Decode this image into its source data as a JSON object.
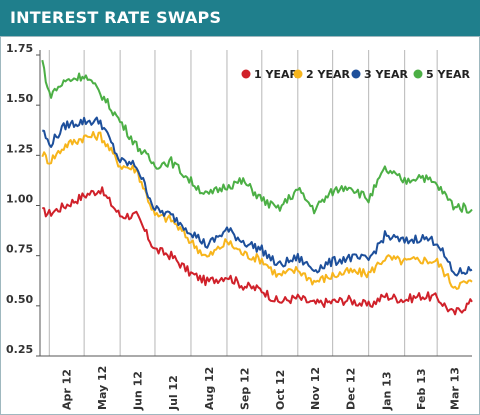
{
  "header": {
    "title": "INTEREST RATE SWAPS"
  },
  "chart_data": {
    "type": "line",
    "title": "INTEREST RATE SWAPS",
    "xlabel": "",
    "ylabel": "",
    "ylim": [
      0.25,
      1.75
    ],
    "y_ticks": [
      0.25,
      0.5,
      0.75,
      1.0,
      1.25,
      1.5,
      1.75
    ],
    "y_tick_labels": [
      "0.25",
      "0.50",
      "0.75",
      "1.00",
      "1.25",
      "1.50",
      "1.75"
    ],
    "x_ticks": [
      "Apr 12",
      "May 12",
      "Jun 12",
      "Jul 12",
      "Aug 12",
      "Sep 12",
      "Oct 12",
      "Nov 12",
      "Dec 12",
      "Jan 13",
      "Feb 13",
      "Mar 13"
    ],
    "x": [
      "2012-03-26",
      "2012-04-01",
      "2012-04-15",
      "2012-05-01",
      "2012-05-15",
      "2012-06-01",
      "2012-06-15",
      "2012-07-01",
      "2012-07-15",
      "2012-08-01",
      "2012-08-15",
      "2012-09-01",
      "2012-09-15",
      "2012-10-01",
      "2012-10-15",
      "2012-11-01",
      "2012-11-15",
      "2012-12-01",
      "2012-12-15",
      "2013-01-01",
      "2013-01-15",
      "2013-02-01",
      "2013-02-15",
      "2013-03-01",
      "2013-03-15",
      "2013-03-31"
    ],
    "grid": "x-axis month lines",
    "legend": "top-right",
    "series": [
      {
        "name": "1 YEAR",
        "color": "#d0212a",
        "values": [
          0.97,
          0.96,
          1.0,
          1.05,
          1.08,
          0.95,
          0.95,
          0.78,
          0.75,
          0.66,
          0.62,
          0.65,
          0.6,
          0.58,
          0.52,
          0.54,
          0.51,
          0.52,
          0.53,
          0.5,
          0.55,
          0.53,
          0.55,
          0.54,
          0.46,
          0.52
        ]
      },
      {
        "name": "2 YEAR",
        "color": "#f7b51c",
        "values": [
          1.26,
          1.22,
          1.3,
          1.34,
          1.35,
          1.2,
          1.18,
          0.95,
          0.93,
          0.82,
          0.74,
          0.82,
          0.76,
          0.73,
          0.65,
          0.68,
          0.62,
          0.65,
          0.67,
          0.66,
          0.74,
          0.72,
          0.73,
          0.72,
          0.6,
          0.62
        ]
      },
      {
        "name": "3 YEAR",
        "color": "#1d4f9b",
        "values": [
          1.38,
          1.3,
          1.4,
          1.42,
          1.42,
          1.22,
          1.2,
          0.98,
          0.95,
          0.87,
          0.8,
          0.88,
          0.82,
          0.78,
          0.7,
          0.74,
          0.68,
          0.72,
          0.74,
          0.73,
          0.85,
          0.82,
          0.84,
          0.82,
          0.66,
          0.68
        ]
      },
      {
        "name": "5 YEAR",
        "color": "#4caf45",
        "values": [
          1.72,
          1.55,
          1.62,
          1.65,
          1.56,
          1.42,
          1.3,
          1.2,
          1.22,
          1.12,
          1.05,
          1.1,
          1.12,
          1.03,
          0.98,
          1.08,
          0.98,
          1.07,
          1.1,
          1.03,
          1.18,
          1.12,
          1.15,
          1.1,
          1.0,
          0.98
        ]
      }
    ]
  }
}
